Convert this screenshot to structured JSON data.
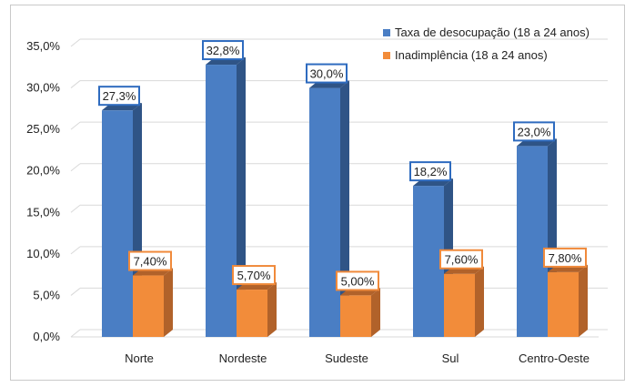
{
  "chart_data": {
    "type": "bar",
    "title": "",
    "xlabel": "",
    "ylabel": "",
    "categories": [
      "Norte",
      "Nordeste",
      "Sudeste",
      "Sul",
      "Centro-Oeste"
    ],
    "series": [
      {
        "name": "Taxa de desocupação (18 a 24 anos)",
        "values": [
          27.3,
          32.8,
          30.0,
          18.2,
          23.0
        ],
        "data_labels": [
          "27,3%",
          "32,8%",
          "30,0%",
          "18,2%",
          "23,0%"
        ],
        "color": "#4a7ec4",
        "side_color": "#2f5486",
        "label_border": "#2e6bbf"
      },
      {
        "name": "Inadimplência (18 a 24 anos)",
        "values": [
          7.4,
          5.7,
          5.0,
          7.6,
          7.8
        ],
        "data_labels": [
          "7,40%",
          "5,70%",
          "5,00%",
          "7,60%",
          "7,80%"
        ],
        "color": "#f28c3a",
        "side_color": "#b1622a",
        "label_border": "#f08a3b"
      }
    ],
    "ylim": [
      0,
      35
    ],
    "y_ticks": [
      "0,0%",
      "5,0%",
      "10,0%",
      "15,0%",
      "20,0%",
      "25,0%",
      "30,0%",
      "35,0%"
    ],
    "y_tick_values": [
      0,
      5,
      10,
      15,
      20,
      25,
      30,
      35
    ],
    "grid": true,
    "legend_position": "top-right",
    "style": "3d-clustered-column"
  }
}
